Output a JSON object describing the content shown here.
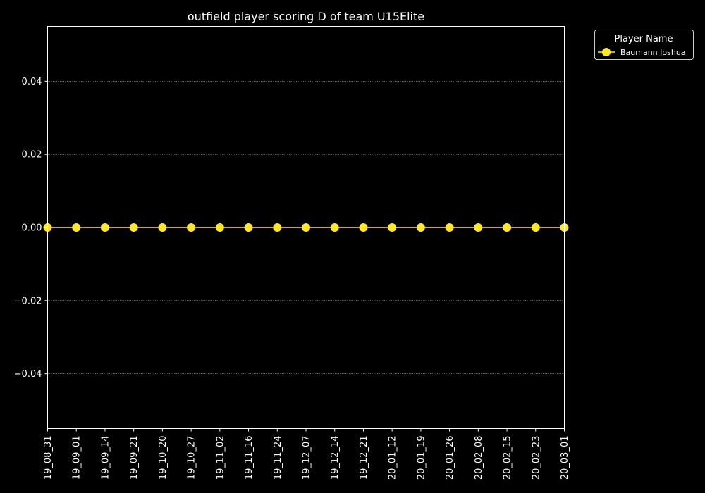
{
  "chart_data": {
    "type": "line",
    "title": "outfield player scoring D of team U15Elite",
    "xlabel": "",
    "ylabel": "",
    "categories": [
      "19_08_31",
      "19_09_01",
      "19_09_14",
      "19_09_21",
      "19_10_20",
      "19_10_27",
      "19_11_02",
      "19_11_16",
      "19_11_24",
      "19_12_07",
      "19_12_14",
      "19_12_21",
      "20_01_12",
      "20_01_19",
      "20_01_26",
      "20_02_08",
      "20_02_15",
      "20_02_23",
      "20_03_01"
    ],
    "series": [
      {
        "name": "Baumann Joshua",
        "values": [
          0,
          0,
          0,
          0,
          0,
          0,
          0,
          0,
          0,
          0,
          0,
          0,
          0,
          0,
          0,
          0,
          0,
          0,
          0
        ]
      }
    ],
    "ylim": [
      -0.055,
      0.055
    ],
    "yticks": [
      -0.04,
      -0.02,
      0.0,
      0.02,
      0.04
    ],
    "ytick_labels": [
      "−0.04",
      "−0.02",
      "0.00",
      "0.02",
      "0.04"
    ],
    "grid": "horizontal dotted",
    "legend": {
      "title": "Player Name",
      "placement": "outside-top-right"
    },
    "colors": {
      "background": "#000000",
      "axes": "#ffffff",
      "grid": "#9a9a9a",
      "series": [
        "#ffe827"
      ]
    }
  }
}
